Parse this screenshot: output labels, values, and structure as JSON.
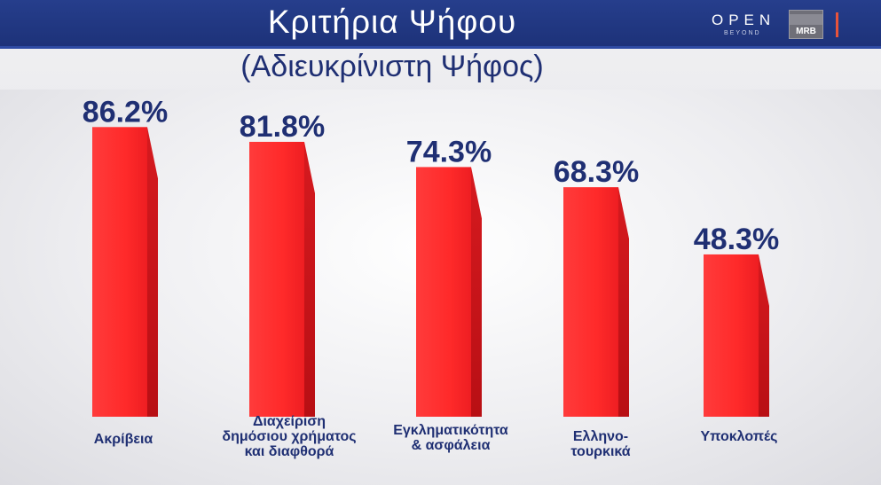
{
  "header": {
    "title": "Κριτήρια  Ψήφου",
    "subtitle": "(Αδιευκρίνιστη Ψήφος)",
    "logo_open": "OPEN",
    "logo_beyond": "BEYOND",
    "logo_mrb": "MRB"
  },
  "colors": {
    "bar_front": "#ff2a2a",
    "bar_side": "#b80f14",
    "value_text": "#1f2f73",
    "header_bg": "#1d3279"
  },
  "chart_data": {
    "type": "bar",
    "title": "Κριτήρια  Ψήφου",
    "subtitle": "(Αδιευκρίνιστη Ψήφος)",
    "categories": [
      [
        "Ακρίβεια"
      ],
      [
        "Διαχείριση",
        "δημόσιου χρήματος",
        "και διαφθορά"
      ],
      [
        "Εγκληματικότητα",
        "& ασφάλεια"
      ],
      [
        "Ελληνο-",
        "τουρκικά"
      ],
      [
        "Υποκλοπές"
      ]
    ],
    "values": [
      86.2,
      81.8,
      74.3,
      68.3,
      48.3
    ],
    "value_labels": [
      "86.2%",
      "81.8%",
      "74.3%",
      "68.3%",
      "48.3%"
    ],
    "unit": "%",
    "ylim": [
      0,
      100
    ],
    "grid": false,
    "legend": "none"
  }
}
